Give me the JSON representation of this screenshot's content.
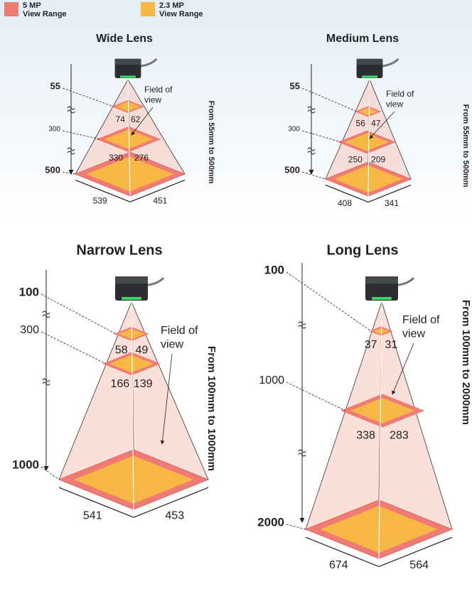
{
  "legend": [
    {
      "line1": "5 MP",
      "line2": "View Range"
    },
    {
      "line1": "2.3 MP",
      "line2": "View Range"
    }
  ],
  "panels": [
    {
      "title": "Wide Lens",
      "distances": [
        "55",
        "300",
        "500"
      ],
      "near": [
        "74",
        "62"
      ],
      "mid": [
        "330",
        "276"
      ],
      "far": [
        "539",
        "451"
      ],
      "field_of_view": [
        "Field of",
        "view"
      ],
      "range": "From 55mm to 500mm"
    },
    {
      "title": "Medium Lens",
      "distances": [
        "55",
        "300",
        "500"
      ],
      "near": [
        "56",
        "47"
      ],
      "mid": [
        "250",
        "209"
      ],
      "far": [
        "408",
        "341"
      ],
      "field_of_view": [
        "Field of",
        "view"
      ],
      "range": "From 55mm to 500mm"
    },
    {
      "title": "Narrow Lens",
      "distances": [
        "100",
        "300",
        "1000"
      ],
      "near": [
        "58",
        "49"
      ],
      "mid": [
        "166",
        "139"
      ],
      "far": [
        "541",
        "453"
      ],
      "field_of_view": [
        "Field of",
        "view"
      ],
      "range": "From 100mm to 1000mm"
    },
    {
      "title": "Long Lens",
      "distances": [
        "100",
        "1000",
        "2000"
      ],
      "near": [
        "37",
        "31"
      ],
      "mid": [
        "338",
        "283"
      ],
      "far": [
        "674",
        "564"
      ],
      "field_of_view": [
        "Field of",
        "view"
      ],
      "range": "From 100mm to 2000mm"
    }
  ]
}
